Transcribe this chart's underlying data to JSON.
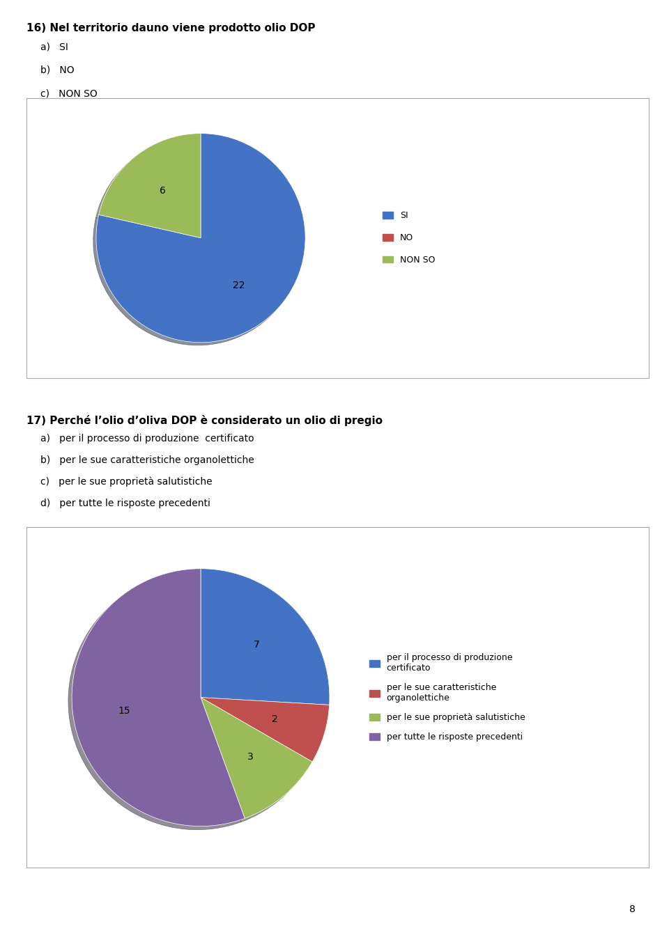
{
  "page_number": "8",
  "q16_title": "16) Nel territorio dauno viene prodotto olio DOP",
  "q16_options": [
    "a)   SI",
    "b)   NO",
    "c)   NON SO"
  ],
  "q16_values": [
    22,
    0,
    6
  ],
  "q16_labels": [
    "22",
    "",
    "6"
  ],
  "q16_legend": [
    "SI",
    "NO",
    "NON SO"
  ],
  "q16_colors": [
    "#4472C4",
    "#C0504D",
    "#9BBB59"
  ],
  "q17_title": "17) Perché l’olio d’oliva DOP è considerato un olio di pregio",
  "q17_options": [
    "a)   per il processo di produzione  certificato",
    "b)   per le sue caratteristiche organolettiche",
    "c)   per le sue proprietà salutistiche",
    "d)   per tutte le risposte precedenti"
  ],
  "q17_values": [
    7,
    2,
    3,
    15
  ],
  "q17_labels": [
    "7",
    "2",
    "3",
    "15"
  ],
  "q17_legend": [
    "per il processo di produzione\ncertificato",
    "per le sue caratteristiche\norganolettiche",
    "per le sue proprietà salutistiche",
    "per tutte le risposte precedenti"
  ],
  "q17_colors": [
    "#4472C4",
    "#C0504D",
    "#9BBB59",
    "#8064A2"
  ],
  "background_color": "#FFFFFF",
  "box_edge_color": "#AAAAAA",
  "title_fontsize": 11,
  "option_fontsize": 10,
  "legend_fontsize": 9,
  "label_fontsize": 10
}
